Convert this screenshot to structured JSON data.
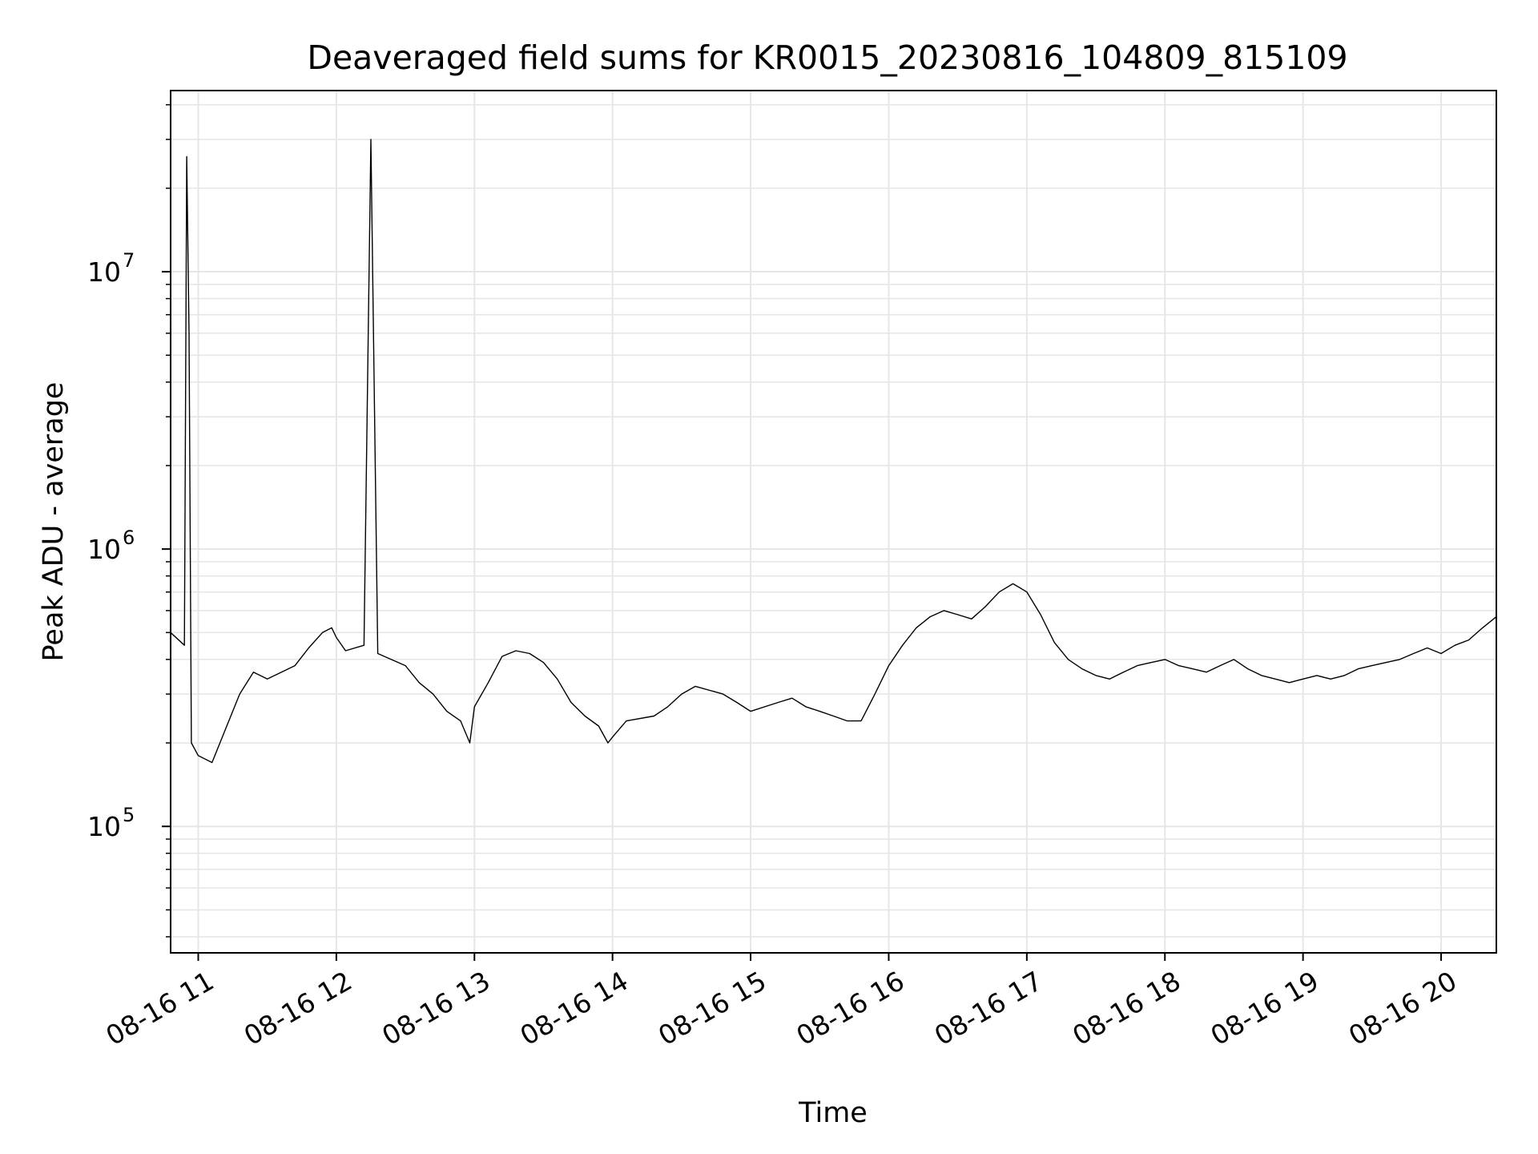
{
  "chart_data": {
    "type": "line",
    "title": "Deaveraged field sums for KR0015_20230816_104809_815109",
    "xlabel": "Time",
    "ylabel": "Peak ADU - average",
    "x_scale": "time",
    "y_scale": "log",
    "xlim": [
      "2023-08-16 10:48",
      "2023-08-16 20:24"
    ],
    "ylim": [
      35000,
      45000000
    ],
    "x_ticks": [
      "08-16 11",
      "08-16 12",
      "08-16 13",
      "08-16 14",
      "08-16 15",
      "08-16 16",
      "08-16 17",
      "08-16 18",
      "08-16 19",
      "08-16 20"
    ],
    "y_ticks": [
      {
        "base": "10",
        "exp": "5",
        "value": 100000
      },
      {
        "base": "10",
        "exp": "6",
        "value": 1000000
      },
      {
        "base": "10",
        "exp": "7",
        "value": 10000000
      }
    ],
    "grid": true,
    "line_color": "#000000",
    "series": [
      {
        "name": "",
        "x": [
          "10:48",
          "10:54",
          "10:55",
          "10:56",
          "10:57",
          "11:00",
          "11:06",
          "11:18",
          "11:24",
          "11:30",
          "11:42",
          "11:48",
          "11:54",
          "11:58",
          "12:00",
          "12:04",
          "12:12",
          "12:15",
          "12:18",
          "12:30",
          "12:36",
          "12:42",
          "12:48",
          "12:54",
          "12:58",
          "13:00",
          "13:06",
          "13:12",
          "13:18",
          "13:24",
          "13:30",
          "13:36",
          "13:42",
          "13:48",
          "13:54",
          "13:58",
          "14:00",
          "14:06",
          "14:18",
          "14:24",
          "14:30",
          "14:36",
          "14:48",
          "14:54",
          "15:00",
          "15:12",
          "15:18",
          "15:24",
          "15:30",
          "15:36",
          "15:42",
          "15:48",
          "15:54",
          "16:00",
          "16:06",
          "16:12",
          "16:18",
          "16:24",
          "16:30",
          "16:36",
          "16:42",
          "16:48",
          "16:54",
          "17:00",
          "17:06",
          "17:12",
          "17:18",
          "17:24",
          "17:30",
          "17:36",
          "17:42",
          "17:48",
          "17:54",
          "18:00",
          "18:06",
          "18:12",
          "18:18",
          "18:24",
          "18:30",
          "18:36",
          "18:42",
          "18:48",
          "18:54",
          "19:00",
          "19:06",
          "19:12",
          "19:18",
          "19:24",
          "19:30",
          "19:36",
          "19:42",
          "19:48",
          "19:54",
          "20:00",
          "20:06",
          "20:12",
          "20:18",
          "20:24"
        ],
        "y": [
          500000,
          450000,
          26000000,
          6000000,
          200000,
          180000,
          170000,
          300000,
          360000,
          340000,
          380000,
          440000,
          500000,
          520000,
          480000,
          430000,
          450000,
          30000000,
          420000,
          380000,
          330000,
          300000,
          260000,
          240000,
          200000,
          270000,
          330000,
          410000,
          430000,
          420000,
          390000,
          340000,
          280000,
          250000,
          230000,
          200000,
          210000,
          240000,
          250000,
          270000,
          300000,
          320000,
          300000,
          280000,
          260000,
          280000,
          290000,
          270000,
          260000,
          250000,
          240000,
          240000,
          300000,
          380000,
          450000,
          520000,
          570000,
          600000,
          580000,
          560000,
          620000,
          700000,
          750000,
          700000,
          580000,
          460000,
          400000,
          370000,
          350000,
          340000,
          360000,
          380000,
          390000,
          400000,
          380000,
          370000,
          360000,
          380000,
          400000,
          370000,
          350000,
          340000,
          330000,
          340000,
          350000,
          340000,
          350000,
          370000,
          380000,
          390000,
          400000,
          420000,
          440000,
          420000,
          450000,
          470000,
          520000,
          570000
        ]
      }
    ]
  }
}
